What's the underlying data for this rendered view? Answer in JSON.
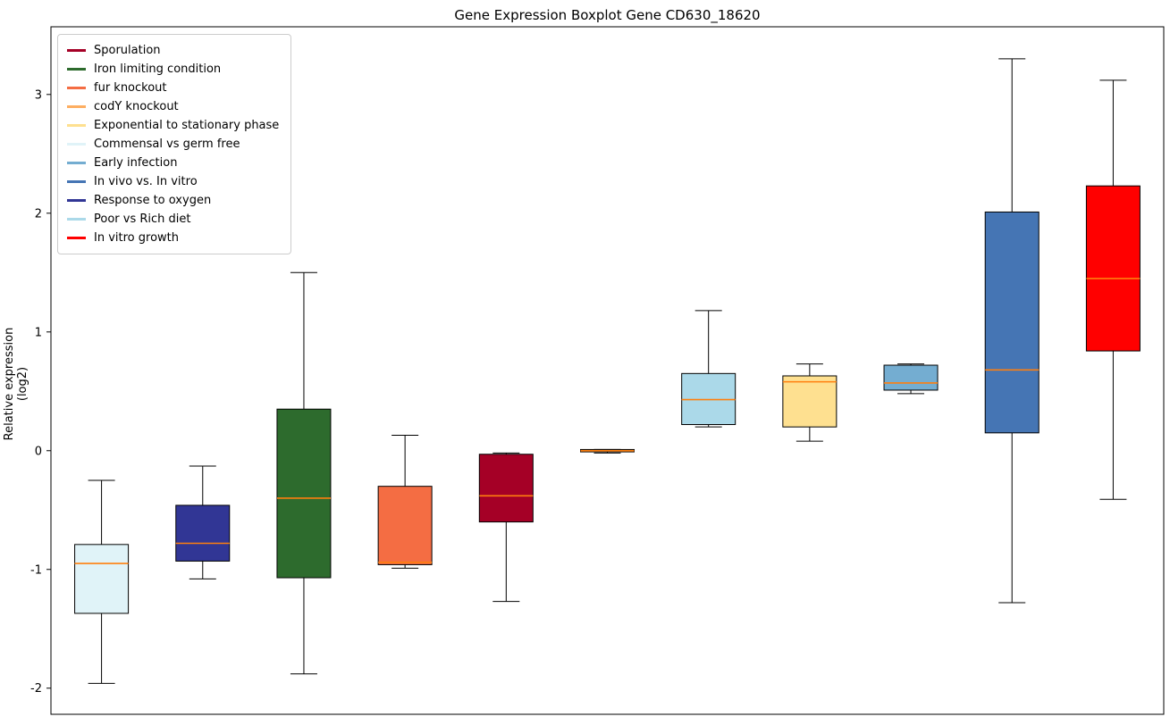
{
  "chart_data": {
    "type": "boxplot",
    "title": "Gene Expression Boxplot Gene CD630_18620",
    "xlabel": "",
    "ylabel": "Relative expression (log2)",
    "ylim": [
      -2.22,
      3.57
    ],
    "yticks": [
      -2,
      -1,
      0,
      1,
      2,
      3
    ],
    "grid": false,
    "frame_color": "#000000",
    "median_color": "#ff7f0e",
    "legend_position": "upper-left",
    "legend": [
      {
        "label": "Sporulation",
        "color": "#a50026"
      },
      {
        "label": "Iron limiting condition",
        "color": "#2d6b2d"
      },
      {
        "label": "fur knockout",
        "color": "#f46d43"
      },
      {
        "label": "codY knockout",
        "color": "#fdae61"
      },
      {
        "label": "Exponential to stationary phase",
        "color": "#fee090"
      },
      {
        "label": "Commensal vs germ free",
        "color": "#e0f3f8"
      },
      {
        "label": "Early infection",
        "color": "#74add1"
      },
      {
        "label": "In vivo vs. In vitro",
        "color": "#4575b4"
      },
      {
        "label": "Response to oxygen",
        "color": "#313695"
      },
      {
        "label": "Poor vs Rich diet",
        "color": "#abd9e9"
      },
      {
        "label": "In vitro growth",
        "color": "#ff0000"
      }
    ],
    "series": [
      {
        "label": "Commensal vs germ free",
        "color": "#e0f3f8",
        "whisker_low": -1.96,
        "q1": -1.37,
        "median": -0.95,
        "q3": -0.79,
        "whisker_high": -0.25
      },
      {
        "label": "Response to oxygen",
        "color": "#313695",
        "whisker_low": -1.08,
        "q1": -0.93,
        "median": -0.78,
        "q3": -0.46,
        "whisker_high": -0.13
      },
      {
        "label": "Iron limiting condition",
        "color": "#2d6b2d",
        "whisker_low": -1.88,
        "q1": -1.07,
        "median": -0.4,
        "q3": 0.35,
        "whisker_high": 1.5
      },
      {
        "label": "fur knockout",
        "color": "#f46d43",
        "whisker_low": -0.99,
        "q1": -0.96,
        "median": -0.94,
        "q3": -0.3,
        "whisker_high": 0.13
      },
      {
        "label": "Sporulation",
        "color": "#a50026",
        "whisker_low": -1.27,
        "q1": -0.6,
        "median": -0.38,
        "q3": -0.03,
        "whisker_high": -0.02
      },
      {
        "label": "codY knockout",
        "color": "#fdae61",
        "whisker_low": -0.02,
        "q1": -0.01,
        "median": 0.0,
        "q3": 0.01,
        "whisker_high": 0.01
      },
      {
        "label": "Poor vs Rich diet",
        "color": "#abd9e9",
        "whisker_low": 0.2,
        "q1": 0.22,
        "median": 0.43,
        "q3": 0.65,
        "whisker_high": 1.18
      },
      {
        "label": "Exponential to stationary phase",
        "color": "#fee090",
        "whisker_low": 0.08,
        "q1": 0.2,
        "median": 0.58,
        "q3": 0.63,
        "whisker_high": 0.73
      },
      {
        "label": "Early infection",
        "color": "#74add1",
        "whisker_low": 0.48,
        "q1": 0.51,
        "median": 0.57,
        "q3": 0.72,
        "whisker_high": 0.73
      },
      {
        "label": "In vivo vs. In vitro",
        "color": "#4575b4",
        "whisker_low": -1.28,
        "q1": 0.15,
        "median": 0.68,
        "q3": 2.01,
        "whisker_high": 3.3
      },
      {
        "label": "In vitro growth",
        "color": "#ff0000",
        "whisker_low": -0.41,
        "q1": 0.84,
        "median": 1.45,
        "q3": 2.23,
        "whisker_high": 3.12
      }
    ]
  }
}
